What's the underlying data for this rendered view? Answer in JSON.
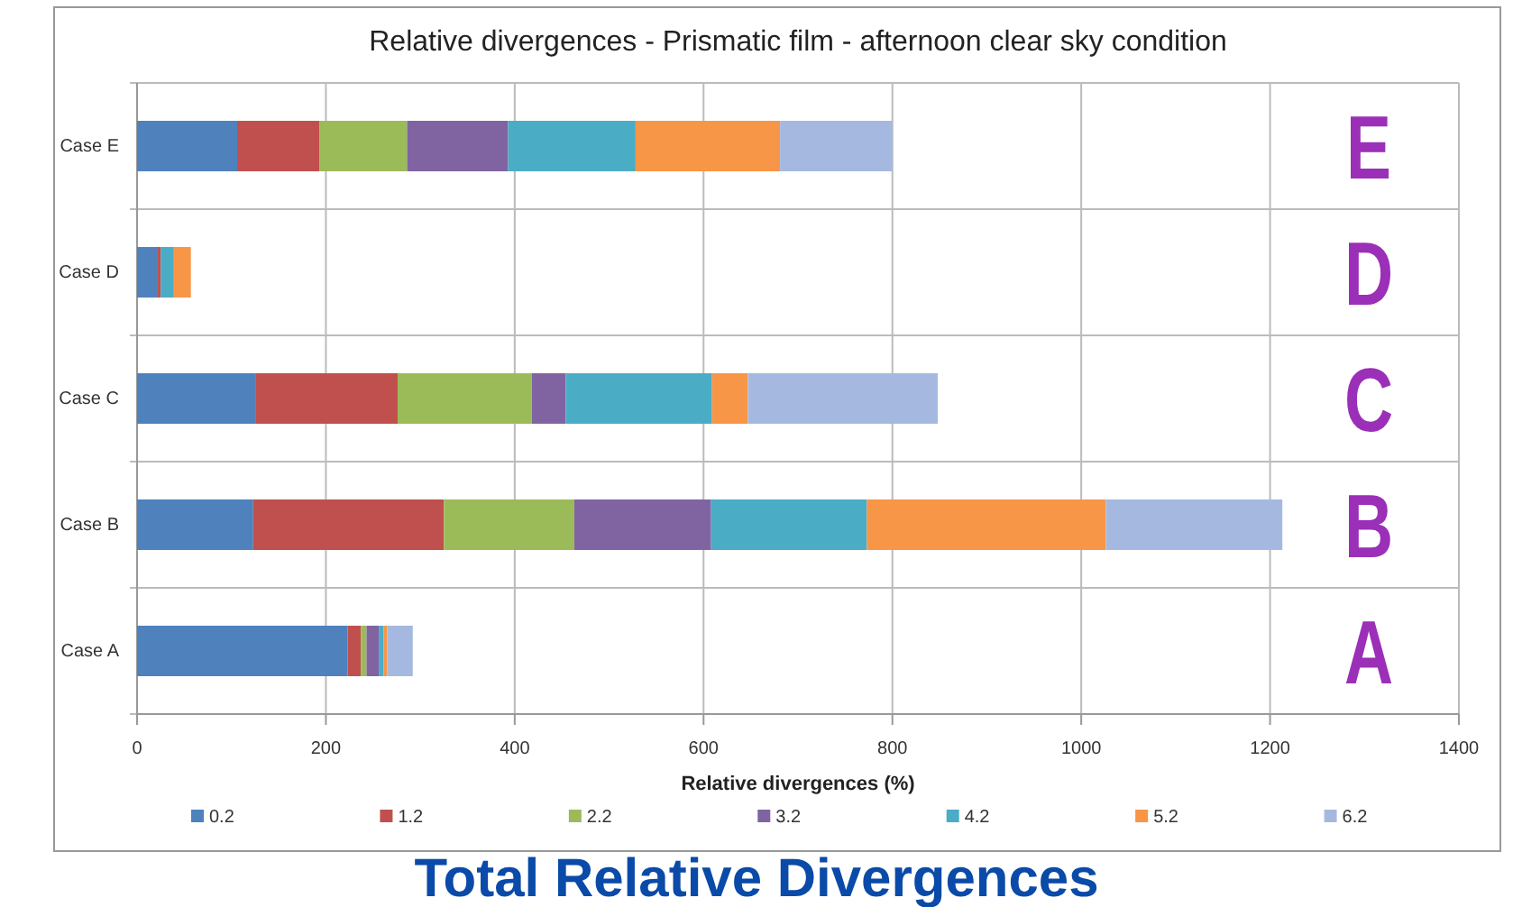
{
  "chart_data": {
    "type": "bar",
    "orientation": "horizontal",
    "stacked": true,
    "title": "Relative divergences - Prismatic film - afternoon clear sky condition",
    "xlabel": "Relative divergences (%)",
    "categories": [
      "Case E",
      "Case D",
      "Case C",
      "Case B",
      "Case A"
    ],
    "series": [
      {
        "name": "0.2",
        "color": "#4f81bd",
        "values": [
          106,
          22,
          126,
          123,
          223
        ]
      },
      {
        "name": "1.2",
        "color": "#c0504d",
        "values": [
          87,
          3,
          150,
          202,
          14
        ]
      },
      {
        "name": "2.2",
        "color": "#9bbb59",
        "values": [
          93,
          0,
          142,
          138,
          6
        ]
      },
      {
        "name": "3.2",
        "color": "#8064a2",
        "values": [
          107,
          0,
          36,
          145,
          13
        ]
      },
      {
        "name": "4.2",
        "color": "#4bacc6",
        "values": [
          135,
          14,
          155,
          165,
          5
        ]
      },
      {
        "name": "5.2",
        "color": "#f79646",
        "values": [
          153,
          18,
          38,
          253,
          4
        ]
      },
      {
        "name": "6.2",
        "color": "#a5b9e0",
        "values": [
          119,
          0,
          201,
          187,
          27
        ]
      }
    ],
    "xlim": [
      0,
      1400
    ],
    "xticks": [
      0,
      200,
      400,
      600,
      800,
      1000,
      1200,
      1400
    ],
    "grid": true,
    "legend": "bottom",
    "annotations": [
      "E",
      "D",
      "C",
      "B",
      "A",
      "Total Relative Divergences"
    ]
  }
}
